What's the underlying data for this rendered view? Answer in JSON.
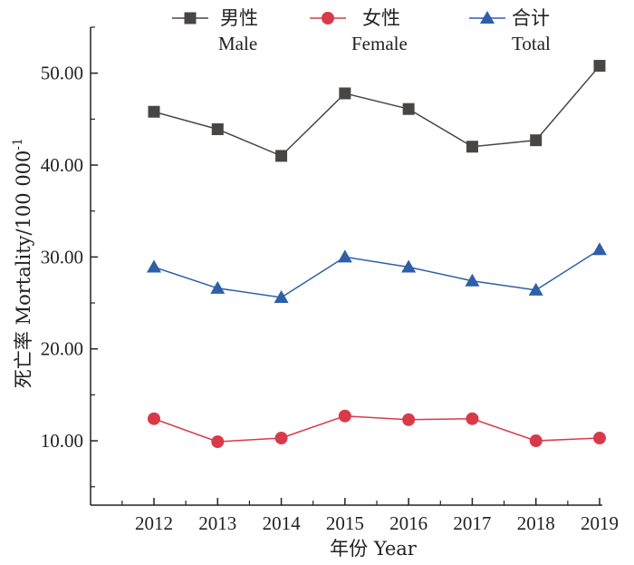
{
  "chart_data": {
    "type": "line",
    "xlabel": "年份 Year",
    "ylabel_main": "死亡率 Mortality/100 000",
    "ylabel_sup": "-1",
    "x": [
      2012,
      2013,
      2014,
      2015,
      2016,
      2017,
      2018,
      2019
    ],
    "ylim": [
      3.0,
      55.0
    ],
    "yticks": [
      10.0,
      20.0,
      30.0,
      40.0,
      50.0
    ],
    "ytick_labels": [
      "10.00",
      "20.00",
      "30.00",
      "40.00",
      "50.00"
    ],
    "grid": false,
    "legend_position": "top",
    "series": [
      {
        "name_cn": "男性",
        "name_en": "Male",
        "marker": "square",
        "color": "#4a4545",
        "values": [
          45.8,
          43.9,
          41.0,
          47.8,
          46.1,
          42.0,
          42.7,
          50.8
        ]
      },
      {
        "name_cn": "女性",
        "name_en": "Female",
        "marker": "circle",
        "color": "#d93a4a",
        "values": [
          12.4,
          9.9,
          10.3,
          12.7,
          12.3,
          12.4,
          10.0,
          10.3
        ]
      },
      {
        "name_cn": "合计",
        "name_en": "Total",
        "marker": "triangle",
        "color": "#2e5fa8",
        "values": [
          28.9,
          26.6,
          25.6,
          30.0,
          28.9,
          27.4,
          26.4,
          30.8
        ]
      }
    ]
  }
}
